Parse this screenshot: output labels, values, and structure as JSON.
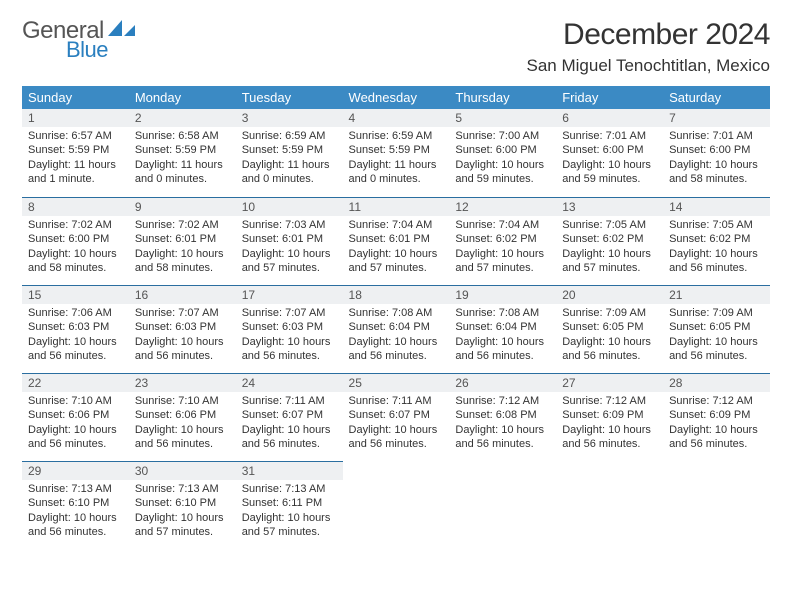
{
  "logo": {
    "word1": "General",
    "word2": "Blue",
    "shape_color": "#2a7fbf",
    "word1_color": "#555555"
  },
  "header": {
    "month_year": "December 2024",
    "location": "San Miguel Tenochtitlan, Mexico"
  },
  "colors": {
    "header_row_bg": "#3b8ac4",
    "header_row_text": "#ffffff",
    "daynum_bg": "#eef0f2",
    "row_divider": "#2a6ea0",
    "body_text": "#333333"
  },
  "days_of_week": [
    "Sunday",
    "Monday",
    "Tuesday",
    "Wednesday",
    "Thursday",
    "Friday",
    "Saturday"
  ],
  "weeks": [
    [
      {
        "n": "1",
        "sr": "Sunrise: 6:57 AM",
        "ss": "Sunset: 5:59 PM",
        "dl": "Daylight: 11 hours and 1 minute."
      },
      {
        "n": "2",
        "sr": "Sunrise: 6:58 AM",
        "ss": "Sunset: 5:59 PM",
        "dl": "Daylight: 11 hours and 0 minutes."
      },
      {
        "n": "3",
        "sr": "Sunrise: 6:59 AM",
        "ss": "Sunset: 5:59 PM",
        "dl": "Daylight: 11 hours and 0 minutes."
      },
      {
        "n": "4",
        "sr": "Sunrise: 6:59 AM",
        "ss": "Sunset: 5:59 PM",
        "dl": "Daylight: 11 hours and 0 minutes."
      },
      {
        "n": "5",
        "sr": "Sunrise: 7:00 AM",
        "ss": "Sunset: 6:00 PM",
        "dl": "Daylight: 10 hours and 59 minutes."
      },
      {
        "n": "6",
        "sr": "Sunrise: 7:01 AM",
        "ss": "Sunset: 6:00 PM",
        "dl": "Daylight: 10 hours and 59 minutes."
      },
      {
        "n": "7",
        "sr": "Sunrise: 7:01 AM",
        "ss": "Sunset: 6:00 PM",
        "dl": "Daylight: 10 hours and 58 minutes."
      }
    ],
    [
      {
        "n": "8",
        "sr": "Sunrise: 7:02 AM",
        "ss": "Sunset: 6:00 PM",
        "dl": "Daylight: 10 hours and 58 minutes."
      },
      {
        "n": "9",
        "sr": "Sunrise: 7:02 AM",
        "ss": "Sunset: 6:01 PM",
        "dl": "Daylight: 10 hours and 58 minutes."
      },
      {
        "n": "10",
        "sr": "Sunrise: 7:03 AM",
        "ss": "Sunset: 6:01 PM",
        "dl": "Daylight: 10 hours and 57 minutes."
      },
      {
        "n": "11",
        "sr": "Sunrise: 7:04 AM",
        "ss": "Sunset: 6:01 PM",
        "dl": "Daylight: 10 hours and 57 minutes."
      },
      {
        "n": "12",
        "sr": "Sunrise: 7:04 AM",
        "ss": "Sunset: 6:02 PM",
        "dl": "Daylight: 10 hours and 57 minutes."
      },
      {
        "n": "13",
        "sr": "Sunrise: 7:05 AM",
        "ss": "Sunset: 6:02 PM",
        "dl": "Daylight: 10 hours and 57 minutes."
      },
      {
        "n": "14",
        "sr": "Sunrise: 7:05 AM",
        "ss": "Sunset: 6:02 PM",
        "dl": "Daylight: 10 hours and 56 minutes."
      }
    ],
    [
      {
        "n": "15",
        "sr": "Sunrise: 7:06 AM",
        "ss": "Sunset: 6:03 PM",
        "dl": "Daylight: 10 hours and 56 minutes."
      },
      {
        "n": "16",
        "sr": "Sunrise: 7:07 AM",
        "ss": "Sunset: 6:03 PM",
        "dl": "Daylight: 10 hours and 56 minutes."
      },
      {
        "n": "17",
        "sr": "Sunrise: 7:07 AM",
        "ss": "Sunset: 6:03 PM",
        "dl": "Daylight: 10 hours and 56 minutes."
      },
      {
        "n": "18",
        "sr": "Sunrise: 7:08 AM",
        "ss": "Sunset: 6:04 PM",
        "dl": "Daylight: 10 hours and 56 minutes."
      },
      {
        "n": "19",
        "sr": "Sunrise: 7:08 AM",
        "ss": "Sunset: 6:04 PM",
        "dl": "Daylight: 10 hours and 56 minutes."
      },
      {
        "n": "20",
        "sr": "Sunrise: 7:09 AM",
        "ss": "Sunset: 6:05 PM",
        "dl": "Daylight: 10 hours and 56 minutes."
      },
      {
        "n": "21",
        "sr": "Sunrise: 7:09 AM",
        "ss": "Sunset: 6:05 PM",
        "dl": "Daylight: 10 hours and 56 minutes."
      }
    ],
    [
      {
        "n": "22",
        "sr": "Sunrise: 7:10 AM",
        "ss": "Sunset: 6:06 PM",
        "dl": "Daylight: 10 hours and 56 minutes."
      },
      {
        "n": "23",
        "sr": "Sunrise: 7:10 AM",
        "ss": "Sunset: 6:06 PM",
        "dl": "Daylight: 10 hours and 56 minutes."
      },
      {
        "n": "24",
        "sr": "Sunrise: 7:11 AM",
        "ss": "Sunset: 6:07 PM",
        "dl": "Daylight: 10 hours and 56 minutes."
      },
      {
        "n": "25",
        "sr": "Sunrise: 7:11 AM",
        "ss": "Sunset: 6:07 PM",
        "dl": "Daylight: 10 hours and 56 minutes."
      },
      {
        "n": "26",
        "sr": "Sunrise: 7:12 AM",
        "ss": "Sunset: 6:08 PM",
        "dl": "Daylight: 10 hours and 56 minutes."
      },
      {
        "n": "27",
        "sr": "Sunrise: 7:12 AM",
        "ss": "Sunset: 6:09 PM",
        "dl": "Daylight: 10 hours and 56 minutes."
      },
      {
        "n": "28",
        "sr": "Sunrise: 7:12 AM",
        "ss": "Sunset: 6:09 PM",
        "dl": "Daylight: 10 hours and 56 minutes."
      }
    ],
    [
      {
        "n": "29",
        "sr": "Sunrise: 7:13 AM",
        "ss": "Sunset: 6:10 PM",
        "dl": "Daylight: 10 hours and 56 minutes."
      },
      {
        "n": "30",
        "sr": "Sunrise: 7:13 AM",
        "ss": "Sunset: 6:10 PM",
        "dl": "Daylight: 10 hours and 57 minutes."
      },
      {
        "n": "31",
        "sr": "Sunrise: 7:13 AM",
        "ss": "Sunset: 6:11 PM",
        "dl": "Daylight: 10 hours and 57 minutes."
      },
      null,
      null,
      null,
      null
    ]
  ]
}
